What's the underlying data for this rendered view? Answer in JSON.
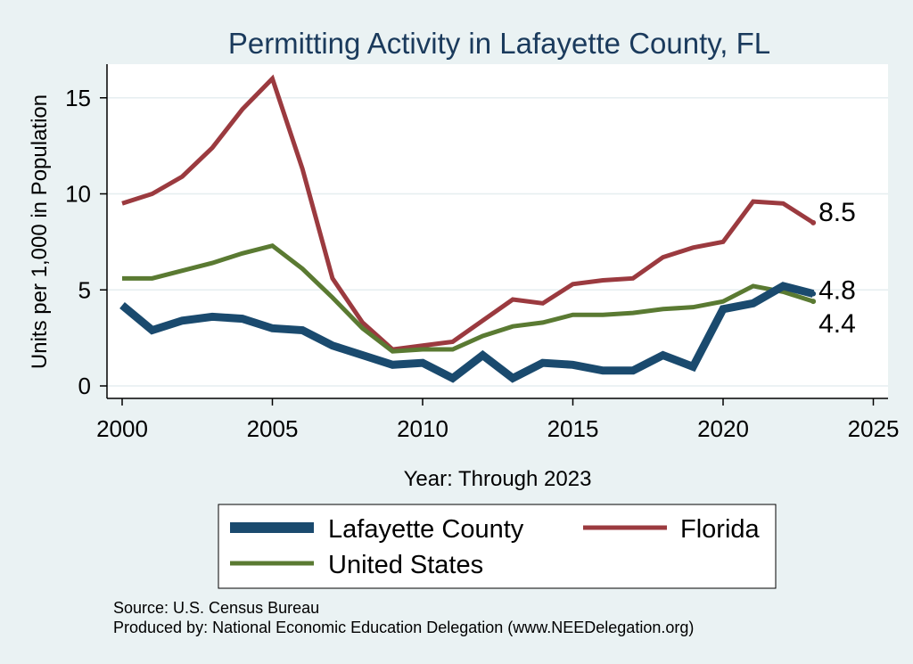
{
  "chart_data": {
    "type": "line",
    "title": "Permitting Activity in Lafayette County, FL",
    "xlabel": "Year: Through 2023",
    "ylabel": "Units per 1,000 in Population",
    "xlim": [
      2000,
      2025
    ],
    "ylim": [
      0,
      16
    ],
    "x_ticks": [
      2000,
      2005,
      2010,
      2015,
      2020,
      2025
    ],
    "y_ticks": [
      0,
      5,
      10,
      15
    ],
    "x": [
      2000,
      2001,
      2002,
      2003,
      2004,
      2005,
      2006,
      2007,
      2008,
      2009,
      2010,
      2011,
      2012,
      2013,
      2014,
      2015,
      2016,
      2017,
      2018,
      2019,
      2020,
      2021,
      2022,
      2023
    ],
    "series": [
      {
        "name": "Lafayette County",
        "color": "#1a4a6e",
        "values": [
          4.2,
          2.9,
          3.4,
          3.6,
          3.5,
          3.0,
          2.9,
          2.1,
          1.6,
          1.1,
          1.2,
          0.4,
          1.6,
          0.4,
          1.2,
          1.1,
          0.8,
          0.8,
          1.6,
          1.0,
          4.0,
          4.3,
          5.2,
          4.8
        ],
        "end_label": "4.8"
      },
      {
        "name": "Florida",
        "color": "#9b3a3f",
        "values": [
          9.5,
          10.0,
          10.9,
          12.4,
          14.4,
          16.0,
          11.3,
          5.6,
          3.3,
          1.9,
          2.1,
          2.3,
          3.4,
          4.5,
          4.3,
          5.3,
          5.5,
          5.6,
          6.7,
          7.2,
          7.5,
          9.6,
          9.5,
          8.5
        ],
        "end_label": "8.5"
      },
      {
        "name": "United States",
        "color": "#5a7a32",
        "values": [
          5.6,
          5.6,
          6.0,
          6.4,
          6.9,
          7.3,
          6.1,
          4.6,
          3.0,
          1.8,
          1.9,
          1.9,
          2.6,
          3.1,
          3.3,
          3.7,
          3.7,
          3.8,
          4.0,
          4.1,
          4.4,
          5.2,
          4.9,
          4.4
        ],
        "end_label": "4.4"
      }
    ],
    "legend": {
      "placement": "bottom",
      "entries": [
        "Lafayette County",
        "Florida",
        "United States"
      ]
    },
    "grid": true,
    "source_note": "Source: U.S. Census Bureau",
    "produced_note": "Produced by: National Economic Education Delegation (www.NEEDelegation.org)"
  }
}
